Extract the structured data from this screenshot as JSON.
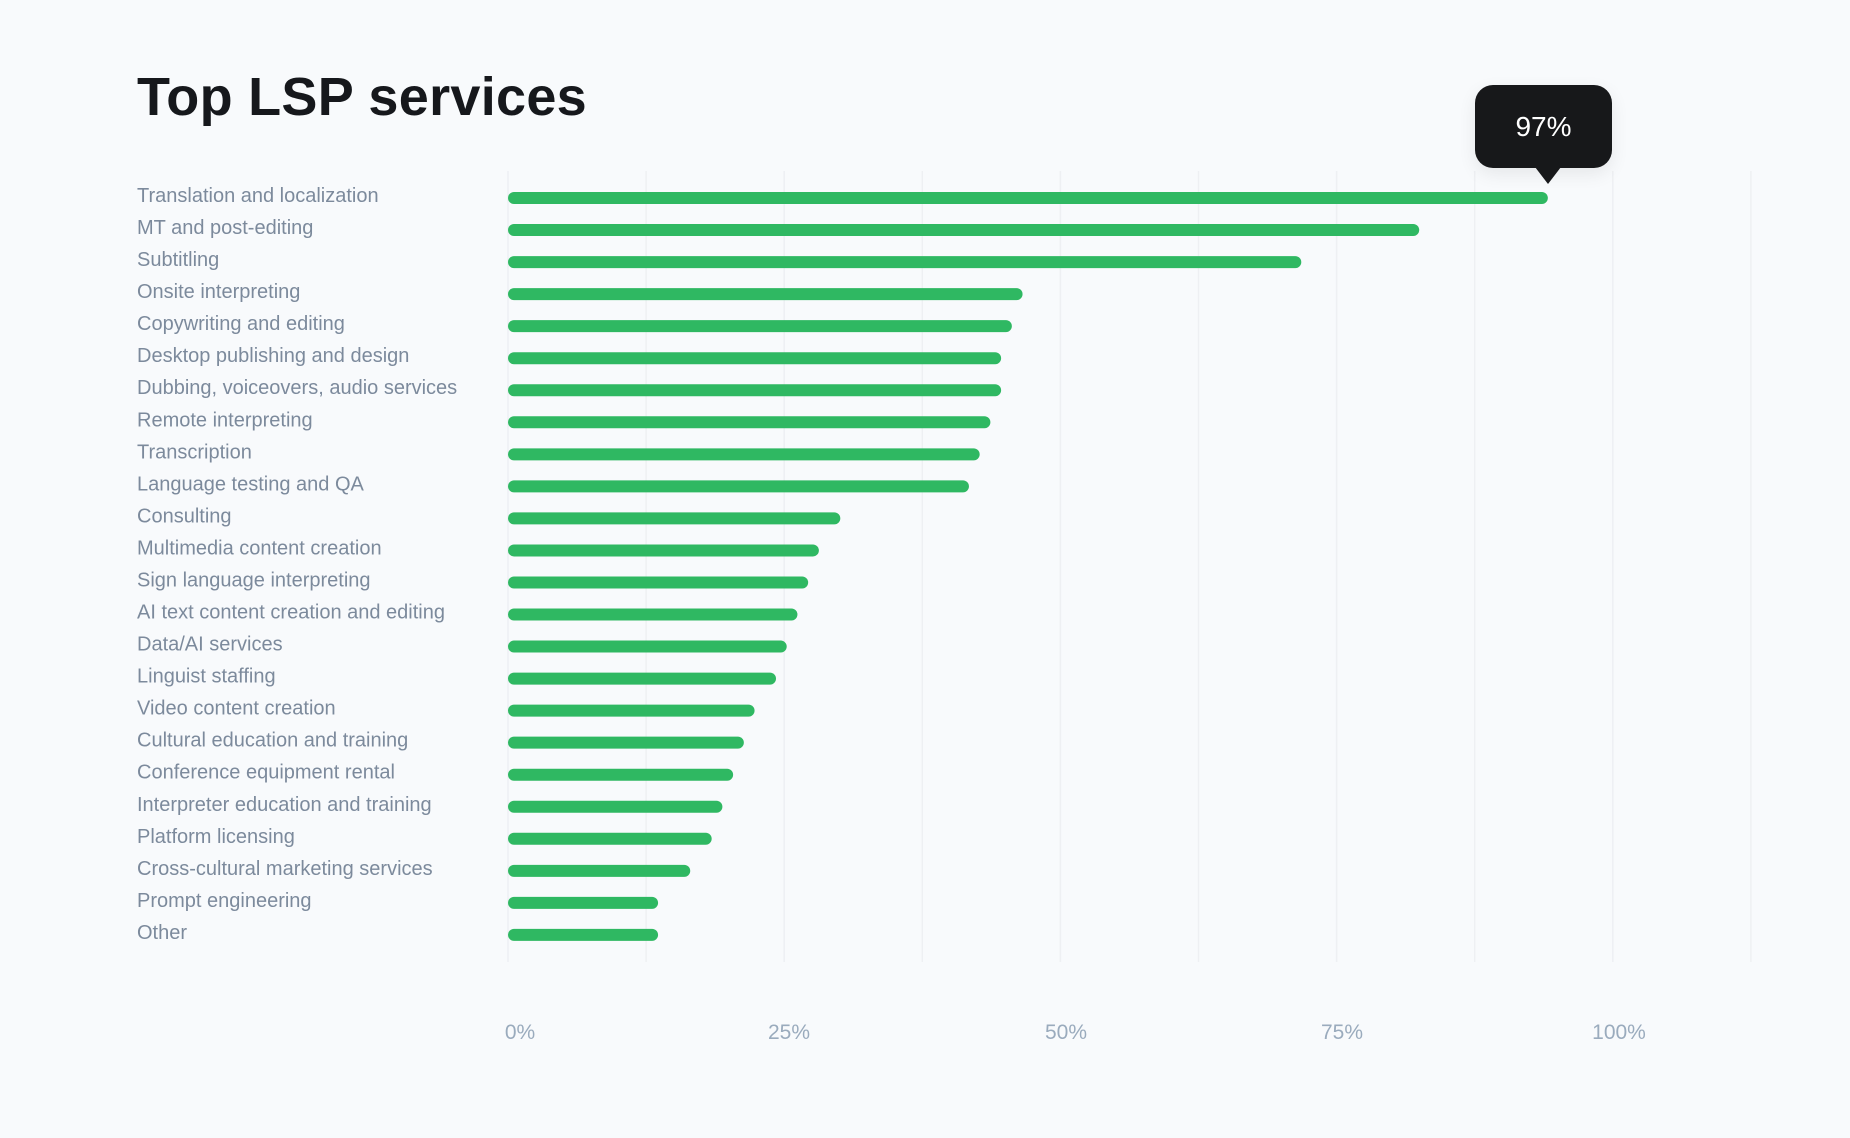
{
  "chart_data": {
    "type": "bar",
    "orientation": "horizontal",
    "title": "Top LSP services",
    "categories": [
      "Translation and localization",
      "MT and post-editing",
      "Subtitling",
      "Onsite interpreting",
      "Copywriting and editing",
      "Desktop publishing and design",
      "Dubbing, voiceovers, audio services",
      "Remote interpreting",
      "Transcription",
      "Language testing and QA",
      "Consulting",
      "Multimedia content creation",
      "Sign language interpreting",
      "AI text content creation and editing",
      "Data/AI services",
      "Linguist staffing",
      "Video content creation",
      "Cultural education and training",
      "Conference equipment rental",
      "Interpreter education and training",
      "Platform licensing",
      "Cross-cultural marketing services",
      "Prompt engineering",
      "Other"
    ],
    "values": [
      97,
      85,
      74,
      48,
      47,
      46,
      46,
      45,
      44,
      43,
      31,
      29,
      28,
      27,
      26,
      25,
      23,
      22,
      21,
      20,
      19,
      17,
      14,
      14
    ],
    "unit": "%",
    "xlim": [
      0,
      112.5
    ],
    "x_ticks": [
      "0%",
      "25%",
      "50%",
      "75%",
      "100%"
    ],
    "grid": "vertical",
    "bar_color": "#2fb862",
    "tooltip": {
      "category": "Translation and localization",
      "text": "97%"
    }
  }
}
